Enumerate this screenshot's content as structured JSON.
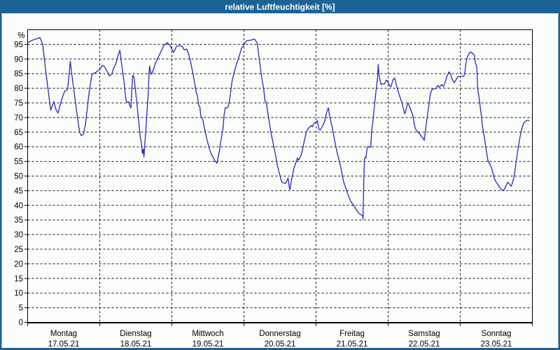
{
  "window": {
    "title": "relative Luftfeuchtigkeit [%]"
  },
  "colors": {
    "titlebar": "#1d6294",
    "frame": "#1d6294",
    "line": "#2828be",
    "grid": "#111111",
    "axis": "#000000",
    "text": "#000000",
    "background": "#fbfdfa"
  },
  "chart_data": {
    "type": "line",
    "title": "relative Luftfeuchtigkeit [%]",
    "ylabel": "%",
    "ylim": [
      0,
      100
    ],
    "yticks": [
      0,
      5,
      10,
      15,
      20,
      25,
      30,
      35,
      40,
      45,
      50,
      55,
      60,
      65,
      70,
      75,
      80,
      85,
      90,
      95
    ],
    "xlim_hours": [
      0,
      168
    ],
    "grid": "dashed",
    "x_axis_days": [
      {
        "name": "Montag",
        "date": "17.05.21"
      },
      {
        "name": "Dienstag",
        "date": "18.05.21"
      },
      {
        "name": "Mittwoch",
        "date": "19.05.21"
      },
      {
        "name": "Donnerstag",
        "date": "20.05.21"
      },
      {
        "name": "Freitag",
        "date": "21.05.21"
      },
      {
        "name": "Samstag",
        "date": "22.05.21"
      },
      {
        "name": "Sonntag",
        "date": "23.05.21"
      }
    ],
    "series": [
      {
        "name": "relative Luftfeuchtigkeit",
        "unit": "%",
        "points": [
          [
            0,
            95.6
          ],
          [
            0.8,
            96
          ],
          [
            2,
            96.6
          ],
          [
            4.1,
            97.3
          ],
          [
            5,
            95
          ],
          [
            6,
            86
          ],
          [
            7,
            78
          ],
          [
            7.7,
            72.5
          ],
          [
            8.7,
            75.5
          ],
          [
            9.4,
            72.8
          ],
          [
            10.1,
            71.5
          ],
          [
            11.2,
            75.8
          ],
          [
            12.3,
            79
          ],
          [
            13.3,
            79.5
          ],
          [
            14.2,
            89.2
          ],
          [
            14.8,
            84
          ],
          [
            15.3,
            80
          ],
          [
            16.3,
            72
          ],
          [
            17.3,
            65
          ],
          [
            17.8,
            63.8
          ],
          [
            18.6,
            64.3
          ],
          [
            19.3,
            68
          ],
          [
            20.4,
            78
          ],
          [
            21.4,
            84.8
          ],
          [
            22.5,
            85.3
          ],
          [
            24,
            86.4
          ],
          [
            24.8,
            87.8
          ],
          [
            25.5,
            87.5
          ],
          [
            26.1,
            86.5
          ],
          [
            27.2,
            84.2
          ],
          [
            28,
            84.8
          ],
          [
            28.6,
            86.8
          ],
          [
            29.4,
            88.5
          ],
          [
            30.2,
            91.6
          ],
          [
            30.7,
            93
          ],
          [
            31.3,
            88.1
          ],
          [
            32.1,
            82.1
          ],
          [
            32.5,
            77.7
          ],
          [
            32.8,
            75.7
          ],
          [
            33.2,
            75.1
          ],
          [
            33.6,
            75.4
          ],
          [
            34,
            74.1
          ],
          [
            34.4,
            73.3
          ],
          [
            34.9,
            84.1
          ],
          [
            35.2,
            84.4
          ],
          [
            35.5,
            82.9
          ],
          [
            35.9,
            79.2
          ],
          [
            36.3,
            75.4
          ],
          [
            36.7,
            71.4
          ],
          [
            37.1,
            67.4
          ],
          [
            37.5,
            63.4
          ],
          [
            37.9,
            61
          ],
          [
            38.2,
            57.7
          ],
          [
            38.5,
            59.2
          ],
          [
            38.7,
            56.5
          ],
          [
            39,
            61
          ],
          [
            39.4,
            66.6
          ],
          [
            39.8,
            72.9
          ],
          [
            40.2,
            79.2
          ],
          [
            40.4,
            84.9
          ],
          [
            40.6,
            87.6
          ],
          [
            40.9,
            85.6
          ],
          [
            41.3,
            84.8
          ],
          [
            41.9,
            86.5
          ],
          [
            42.5,
            88.5
          ],
          [
            44.1,
            92
          ],
          [
            45.2,
            94.4
          ],
          [
            46.4,
            95.6
          ],
          [
            47.3,
            94.8
          ],
          [
            48,
            93.4
          ],
          [
            48.6,
            92.3
          ],
          [
            49.6,
            94.4
          ],
          [
            50.5,
            94.6
          ],
          [
            51.5,
            94.3
          ],
          [
            52.1,
            93.1
          ],
          [
            52.9,
            93.4
          ],
          [
            53.5,
            92
          ],
          [
            54.2,
            89.2
          ],
          [
            55,
            85.2
          ],
          [
            55.8,
            80.4
          ],
          [
            56.2,
            78.2
          ],
          [
            56.5,
            77.6
          ],
          [
            56.9,
            74.2
          ],
          [
            57.3,
            73.8
          ],
          [
            57.7,
            70.2
          ],
          [
            58.2,
            69.8
          ],
          [
            58.9,
            66.1
          ],
          [
            59.6,
            62.9
          ],
          [
            60.4,
            59.7
          ],
          [
            61.2,
            57.3
          ],
          [
            61.9,
            56.1
          ],
          [
            62.3,
            55.2
          ],
          [
            62.7,
            54.7
          ],
          [
            63,
            54.4
          ],
          [
            63.9,
            58.9
          ],
          [
            64.2,
            61.3
          ],
          [
            65,
            66.1
          ],
          [
            65.4,
            71
          ],
          [
            65.8,
            73.4
          ],
          [
            66.5,
            73.3
          ],
          [
            66.9,
            74.3
          ],
          [
            67.3,
            76.5
          ],
          [
            68.1,
            82.9
          ],
          [
            68.8,
            85.7
          ],
          [
            69.6,
            88.5
          ],
          [
            70.4,
            90.9
          ],
          [
            71.2,
            93.7
          ],
          [
            71.9,
            94.7
          ],
          [
            72.9,
            96.3
          ],
          [
            74.1,
            96.4
          ],
          [
            75.5,
            96.8
          ],
          [
            76.4,
            95.5
          ],
          [
            77.1,
            90
          ],
          [
            77.8,
            84.4
          ],
          [
            78.6,
            79.6
          ],
          [
            79,
            75.6
          ],
          [
            79.4,
            75.2
          ],
          [
            80.2,
            70.1
          ],
          [
            80.9,
            65.3
          ],
          [
            81.7,
            61.3
          ],
          [
            82.5,
            57.3
          ],
          [
            83.2,
            53.3
          ],
          [
            84,
            50.1
          ],
          [
            84.4,
            48.5
          ],
          [
            84.8,
            47.8
          ],
          [
            85.9,
            47.5
          ],
          [
            86.7,
            49.3
          ],
          [
            87.1,
            46.1
          ],
          [
            87.3,
            45.3
          ],
          [
            87.7,
            48
          ],
          [
            88.6,
            52.5
          ],
          [
            89.4,
            54.9
          ],
          [
            89.8,
            56.2
          ],
          [
            90.2,
            55.4
          ],
          [
            90.9,
            56.9
          ],
          [
            91.3,
            58.1
          ],
          [
            92.1,
            62.1
          ],
          [
            92.8,
            65.3
          ],
          [
            93.6,
            66.5
          ],
          [
            94.4,
            67.3
          ],
          [
            94.8,
            66.8
          ],
          [
            95.2,
            67.9
          ],
          [
            96,
            68.5
          ],
          [
            96.5,
            68.9
          ],
          [
            96.9,
            66
          ],
          [
            97.4,
            65.7
          ],
          [
            98.1,
            67
          ],
          [
            98.8,
            68.5
          ],
          [
            99.5,
            71.7
          ],
          [
            100.1,
            73.3
          ],
          [
            100.6,
            70.1
          ],
          [
            101.5,
            66.1
          ],
          [
            102.2,
            62.1
          ],
          [
            103,
            58.1
          ],
          [
            103.8,
            54.9
          ],
          [
            104.5,
            51.7
          ],
          [
            104.9,
            49.3
          ],
          [
            105.3,
            47.7
          ],
          [
            106.1,
            45.3
          ],
          [
            106.9,
            42.9
          ],
          [
            107.6,
            41.3
          ],
          [
            108.4,
            40.1
          ],
          [
            109.2,
            38.9
          ],
          [
            109.9,
            37.7
          ],
          [
            110.7,
            36.9
          ],
          [
            111.5,
            36.5
          ],
          [
            111.6,
            35.3
          ],
          [
            111.9,
            48
          ],
          [
            112.1,
            55.7
          ],
          [
            112.4,
            56.5
          ],
          [
            112.6,
            56.2
          ],
          [
            113,
            59.7
          ],
          [
            113.3,
            60.1
          ],
          [
            114.2,
            59.8
          ],
          [
            114.5,
            65.3
          ],
          [
            114.9,
            68.5
          ],
          [
            115.3,
            72.5
          ],
          [
            115.7,
            76.5
          ],
          [
            116.1,
            80.5
          ],
          [
            116.5,
            83.7
          ],
          [
            116.7,
            88.1
          ],
          [
            117,
            84.4
          ],
          [
            117.2,
            83.3
          ],
          [
            117.6,
            81.3
          ],
          [
            118.2,
            81.6
          ],
          [
            118.8,
            81.5
          ],
          [
            119.2,
            82.5
          ],
          [
            119.5,
            82.8
          ],
          [
            120,
            81.9
          ],
          [
            120.5,
            80.9
          ],
          [
            120.9,
            80.5
          ],
          [
            121.6,
            82.9
          ],
          [
            122.2,
            83.5
          ],
          [
            122.9,
            80.5
          ],
          [
            123.7,
            77.7
          ],
          [
            124.5,
            75.3
          ],
          [
            124.9,
            73.7
          ],
          [
            125.4,
            71.7
          ],
          [
            125.6,
            71.3
          ],
          [
            126.4,
            74.5
          ],
          [
            126.7,
            74.9
          ],
          [
            127.6,
            72.5
          ],
          [
            128.3,
            70.5
          ],
          [
            128.7,
            67.7
          ],
          [
            129.1,
            66.1
          ],
          [
            129.9,
            64.9
          ],
          [
            130.5,
            64.5
          ],
          [
            130.9,
            63.7
          ],
          [
            131.6,
            62.9
          ],
          [
            132,
            62.2
          ],
          [
            132.8,
            68.5
          ],
          [
            133.2,
            71.7
          ],
          [
            133.6,
            74.5
          ],
          [
            133.9,
            77.3
          ],
          [
            134.3,
            78.9
          ],
          [
            134.7,
            79.7
          ],
          [
            135.9,
            79.9
          ],
          [
            136.2,
            80.5
          ],
          [
            136.6,
            80.9
          ],
          [
            137,
            80.3
          ],
          [
            137.8,
            81.3
          ],
          [
            138.4,
            80.5
          ],
          [
            138.9,
            81.9
          ],
          [
            139.7,
            84.4
          ],
          [
            140.2,
            85.6
          ],
          [
            140.8,
            84.8
          ],
          [
            141.2,
            83.3
          ],
          [
            142,
            81.9
          ],
          [
            142.6,
            82.9
          ],
          [
            143.2,
            84
          ],
          [
            144,
            84
          ],
          [
            145.2,
            84.1
          ],
          [
            145.6,
            86
          ],
          [
            146,
            89.2
          ],
          [
            146.4,
            90.8
          ],
          [
            147,
            92
          ],
          [
            147.5,
            92.4
          ],
          [
            148.3,
            91.8
          ],
          [
            148.7,
            91.2
          ],
          [
            149.1,
            88.5
          ],
          [
            149.5,
            87.4
          ],
          [
            149.8,
            80.1
          ],
          [
            150.2,
            77.3
          ],
          [
            150.6,
            74.1
          ],
          [
            151,
            70.9
          ],
          [
            151.4,
            66.9
          ],
          [
            151.8,
            64.5
          ],
          [
            152.2,
            62.1
          ],
          [
            152.5,
            59.7
          ],
          [
            152.9,
            57.3
          ],
          [
            153.3,
            54.9
          ],
          [
            153.7,
            54.5
          ],
          [
            154.5,
            52.5
          ],
          [
            154.9,
            50.9
          ],
          [
            155.2,
            49.7
          ],
          [
            155.6,
            48.5
          ],
          [
            156.4,
            47.3
          ],
          [
            157.2,
            46.1
          ],
          [
            157.6,
            45.4
          ],
          [
            158.3,
            45.1
          ],
          [
            158.7,
            45.5
          ],
          [
            159.5,
            47.3
          ],
          [
            159.9,
            47.9
          ],
          [
            160.6,
            46.9
          ],
          [
            161,
            46.5
          ],
          [
            161.8,
            49.3
          ],
          [
            162.2,
            51.7
          ],
          [
            162.5,
            54.1
          ],
          [
            162.9,
            56.9
          ],
          [
            163.3,
            59.7
          ],
          [
            163.7,
            62.1
          ],
          [
            164.1,
            64.5
          ],
          [
            164.5,
            66.1
          ],
          [
            164.8,
            67.3
          ],
          [
            165.2,
            68.1
          ],
          [
            165.6,
            68.7
          ],
          [
            166.4,
            69.1
          ],
          [
            166.9,
            68.9
          ]
        ]
      }
    ]
  }
}
